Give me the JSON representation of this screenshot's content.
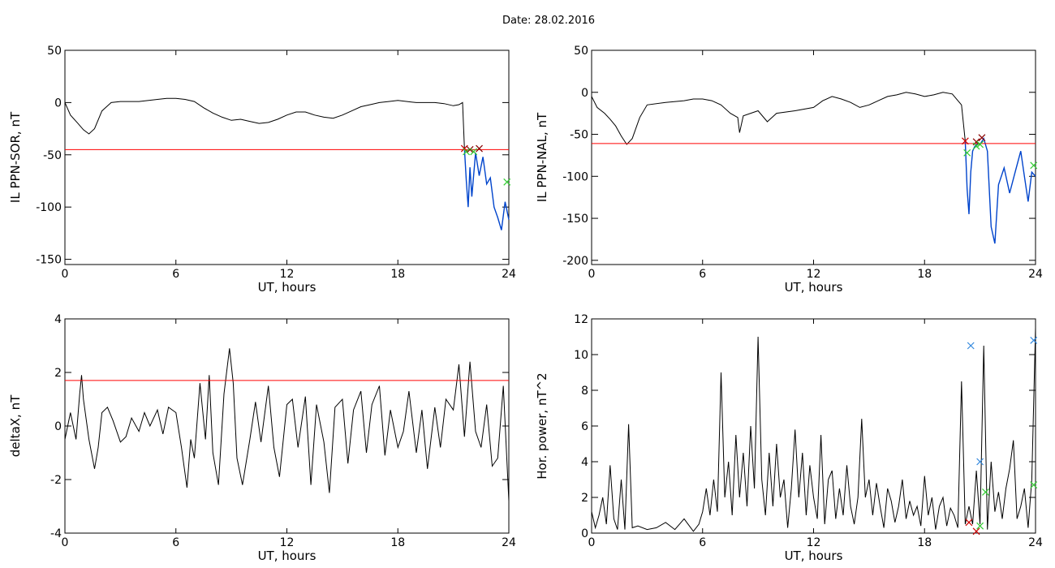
{
  "title": "Date:  28.02.2016",
  "colors": {
    "trace": "#000000",
    "threshold": "#ff0000",
    "highlight": "#0044cc",
    "marker_red": "#cc0000",
    "marker_green": "#33cc33",
    "marker_blue": "#3388dd",
    "marker_darkred": "#880000"
  },
  "chart_data": [
    {
      "id": "p1",
      "type": "line",
      "xlabel": "UT, hours",
      "ylabel": "IL PPN-SOR, nT",
      "xlim": [
        0,
        24
      ],
      "ylim": [
        -155,
        50
      ],
      "xticks": [
        0,
        6,
        12,
        18,
        24
      ],
      "yticks": [
        50,
        0,
        -50,
        -100,
        -150
      ],
      "threshold": -45,
      "series": [
        {
          "x": [
            0,
            0.3,
            0.7,
            1.0,
            1.3,
            1.6,
            2.0,
            2.5,
            3.0,
            4.0,
            5.0,
            5.5,
            6.0,
            6.5,
            7.0,
            7.5,
            8.0,
            8.5,
            9.0,
            9.5,
            10.0,
            10.5,
            11.0,
            11.5,
            12.0,
            12.5,
            13.0,
            13.5,
            14.0,
            14.5,
            15.0,
            15.5,
            16.0,
            16.5,
            17.0,
            17.5,
            18.0,
            18.5,
            19.0,
            19.5,
            20.0,
            20.5,
            21.0,
            21.3,
            21.5,
            21.6
          ],
          "y": [
            0,
            -12,
            -20,
            -26,
            -30,
            -25,
            -8,
            0,
            1,
            1,
            3,
            4,
            4,
            3,
            1,
            -5,
            -10,
            -14,
            -17,
            -16,
            -18,
            -20,
            -19,
            -16,
            -12,
            -9,
            -9,
            -12,
            -14,
            -15,
            -12,
            -8,
            -4,
            -2,
            0,
            1,
            2,
            1,
            0,
            0,
            0,
            -1,
            -3,
            -2,
            0,
            -44
          ]
        },
        {
          "x": [
            21.6,
            21.7,
            21.8,
            21.9,
            22.0,
            22.2,
            22.4,
            22.6,
            22.8,
            23.0,
            23.2,
            23.4,
            23.6,
            23.8,
            24.0
          ],
          "y": [
            -44,
            -75,
            -100,
            -62,
            -90,
            -48,
            -70,
            -52,
            -78,
            -72,
            -100,
            -110,
            -122,
            -95,
            -112
          ],
          "highlight": true
        }
      ],
      "markers": [
        {
          "x": 21.6,
          "y": -44,
          "color": "marker_red"
        },
        {
          "x": 21.9,
          "y": -45,
          "color": "marker_darkred"
        },
        {
          "x": 22.4,
          "y": -44,
          "color": "marker_darkred"
        },
        {
          "x": 21.7,
          "y": -47,
          "color": "marker_green"
        },
        {
          "x": 22.1,
          "y": -47,
          "color": "marker_green"
        },
        {
          "x": 23.9,
          "y": -76,
          "color": "marker_green"
        }
      ]
    },
    {
      "id": "p2",
      "type": "line",
      "xlabel": "UT, hours",
      "ylabel": "IL PPN-NAL, nT",
      "xlim": [
        0,
        24
      ],
      "ylim": [
        -205,
        50
      ],
      "xticks": [
        0,
        6,
        12,
        18,
        24
      ],
      "yticks": [
        50,
        0,
        -50,
        -100,
        -150,
        -200
      ],
      "threshold": -61,
      "series": [
        {
          "x": [
            0,
            0.3,
            0.7,
            1.0,
            1.3,
            1.6,
            1.9,
            2.2,
            2.6,
            3.0,
            4.0,
            5.0,
            5.5,
            6.0,
            6.5,
            7.0,
            7.5,
            7.9,
            8.0,
            8.2,
            9.0,
            9.5,
            10.0,
            11.0,
            12.0,
            12.5,
            13.0,
            13.5,
            14.0,
            14.5,
            15.0,
            15.5,
            16.0,
            16.5,
            17.0,
            17.5,
            18.0,
            18.5,
            19.0,
            19.5,
            20.0,
            20.2
          ],
          "y": [
            -5,
            -18,
            -25,
            -32,
            -40,
            -52,
            -62,
            -55,
            -30,
            -15,
            -12,
            -10,
            -8,
            -8,
            -10,
            -15,
            -25,
            -30,
            -48,
            -28,
            -22,
            -35,
            -25,
            -22,
            -18,
            -10,
            -5,
            -8,
            -12,
            -18,
            -15,
            -10,
            -5,
            -3,
            0,
            -2,
            -5,
            -3,
            0,
            -2,
            -15,
            -58
          ]
        },
        {
          "x": [
            20.2,
            20.3,
            20.4,
            20.5,
            20.6,
            20.7,
            20.9,
            21.0,
            21.2,
            21.4,
            21.6,
            21.8,
            22.0,
            22.3,
            22.6,
            22.9,
            23.2,
            23.4,
            23.6,
            23.8,
            24.0
          ],
          "y": [
            -58,
            -115,
            -145,
            -95,
            -70,
            -65,
            -60,
            -62,
            -55,
            -70,
            -160,
            -180,
            -110,
            -90,
            -120,
            -95,
            -70,
            -100,
            -130,
            -95,
            -100
          ],
          "highlight": true
        }
      ],
      "markers": [
        {
          "x": 20.2,
          "y": -58,
          "color": "marker_red"
        },
        {
          "x": 20.8,
          "y": -59,
          "color": "marker_darkred"
        },
        {
          "x": 21.1,
          "y": -54,
          "color": "marker_darkred"
        },
        {
          "x": 20.3,
          "y": -72,
          "color": "marker_green"
        },
        {
          "x": 20.8,
          "y": -64,
          "color": "marker_green"
        },
        {
          "x": 21.0,
          "y": -62,
          "color": "marker_green"
        },
        {
          "x": 23.9,
          "y": -87,
          "color": "marker_green"
        }
      ]
    },
    {
      "id": "p3",
      "type": "line",
      "xlabel": "UT, hours",
      "ylabel": "deltaX, nT",
      "xlim": [
        0,
        24
      ],
      "ylim": [
        -4,
        4
      ],
      "xticks": [
        0,
        6,
        12,
        18,
        24
      ],
      "yticks": [
        4,
        2,
        0,
        -2,
        -4
      ],
      "threshold": 1.7,
      "series": [
        {
          "x": [
            0,
            0.3,
            0.6,
            0.8,
            0.9,
            1.0,
            1.3,
            1.6,
            1.8,
            2.0,
            2.3,
            2.6,
            3.0,
            3.3,
            3.6,
            4.0,
            4.3,
            4.6,
            5.0,
            5.3,
            5.6,
            6.0,
            6.3,
            6.6,
            6.8,
            7.0,
            7.3,
            7.6,
            7.8,
            8.0,
            8.3,
            8.6,
            8.9,
            9.1,
            9.3,
            9.6,
            10.0,
            10.3,
            10.6,
            11.0,
            11.3,
            11.6,
            12.0,
            12.3,
            12.6,
            13.0,
            13.3,
            13.6,
            14.0,
            14.3,
            14.6,
            15.0,
            15.3,
            15.6,
            16.0,
            16.3,
            16.6,
            17.0,
            17.3,
            17.6,
            18.0,
            18.3,
            18.6,
            19.0,
            19.3,
            19.6,
            20.0,
            20.3,
            20.6,
            21.0,
            21.3,
            21.6,
            21.9,
            22.2,
            22.5,
            22.8,
            23.1,
            23.4,
            23.7,
            24.0
          ],
          "y": [
            -0.5,
            0.5,
            -0.5,
            1.2,
            1.9,
            1.0,
            -0.5,
            -1.6,
            -0.8,
            0.5,
            0.7,
            0.2,
            -0.6,
            -0.4,
            0.3,
            -0.2,
            0.5,
            0.0,
            0.6,
            -0.3,
            0.7,
            0.5,
            -0.8,
            -2.3,
            -0.5,
            -1.2,
            1.6,
            -0.5,
            1.9,
            -1.0,
            -2.2,
            1.2,
            2.9,
            1.6,
            -1.2,
            -2.2,
            -0.5,
            0.9,
            -0.6,
            1.5,
            -0.8,
            -1.9,
            0.8,
            1.0,
            -0.8,
            1.1,
            -2.2,
            0.8,
            -0.6,
            -2.5,
            0.7,
            1.0,
            -1.4,
            0.6,
            1.3,
            -1.0,
            0.8,
            1.5,
            -1.1,
            0.6,
            -0.8,
            -0.2,
            1.3,
            -1.0,
            0.6,
            -1.6,
            0.7,
            -0.8,
            1.0,
            0.6,
            2.3,
            -0.4,
            2.4,
            -0.2,
            -0.8,
            0.8,
            -1.5,
            -1.2,
            1.5,
            -2.8
          ]
        }
      ],
      "markers": []
    },
    {
      "id": "p4",
      "type": "line",
      "xlabel": "UT, hours",
      "ylabel": "Hor. power, nT^2",
      "xlim": [
        0,
        24
      ],
      "ylim": [
        0,
        12
      ],
      "xticks": [
        0,
        6,
        12,
        18,
        24
      ],
      "yticks": [
        12,
        10,
        8,
        6,
        4,
        2,
        0
      ],
      "threshold": null,
      "series": [
        {
          "x": [
            0,
            0.2,
            0.4,
            0.6,
            0.8,
            1.0,
            1.2,
            1.4,
            1.6,
            1.8,
            2.0,
            2.2,
            2.5,
            3.0,
            3.5,
            4.0,
            4.5,
            5.0,
            5.5,
            5.8,
            6.0,
            6.2,
            6.4,
            6.6,
            6.8,
            7.0,
            7.2,
            7.4,
            7.6,
            7.8,
            8.0,
            8.2,
            8.4,
            8.6,
            8.8,
            9.0,
            9.2,
            9.4,
            9.6,
            9.8,
            10.0,
            10.2,
            10.4,
            10.6,
            10.8,
            11.0,
            11.2,
            11.4,
            11.6,
            11.8,
            12.0,
            12.2,
            12.4,
            12.6,
            12.8,
            13.0,
            13.2,
            13.4,
            13.6,
            13.8,
            14.0,
            14.2,
            14.4,
            14.6,
            14.8,
            15.0,
            15.2,
            15.4,
            15.6,
            15.8,
            16.0,
            16.2,
            16.4,
            16.6,
            16.8,
            17.0,
            17.2,
            17.4,
            17.6,
            17.8,
            18.0,
            18.2,
            18.4,
            18.6,
            18.8,
            19.0,
            19.2,
            19.4,
            19.6,
            19.8,
            20.0,
            20.2,
            20.4,
            20.6,
            20.8,
            21.0,
            21.2,
            21.4,
            21.6,
            21.8,
            22.0,
            22.2,
            22.4,
            22.6,
            22.8,
            23.0,
            23.2,
            23.4,
            23.6,
            23.8,
            24.0
          ],
          "y": [
            1.2,
            0.3,
            1.0,
            2.0,
            0.5,
            3.8,
            0.8,
            0.2,
            3.0,
            0.2,
            6.1,
            0.3,
            0.4,
            0.2,
            0.3,
            0.6,
            0.2,
            0.8,
            0.1,
            0.5,
            1.2,
            2.5,
            1.0,
            3.0,
            1.2,
            9.0,
            2.0,
            4.0,
            1.0,
            5.5,
            2.0,
            4.5,
            1.5,
            6.0,
            2.5,
            11.0,
            3.0,
            1.0,
            4.5,
            1.5,
            5.0,
            2.0,
            3.0,
            0.3,
            2.5,
            5.8,
            2.0,
            4.5,
            1.0,
            3.8,
            2.0,
            0.8,
            5.5,
            0.5,
            3.0,
            3.5,
            0.8,
            2.5,
            1.0,
            3.8,
            1.5,
            0.5,
            2.0,
            6.4,
            2.0,
            3.0,
            1.0,
            2.8,
            1.5,
            0.3,
            2.5,
            1.8,
            0.6,
            1.5,
            3.0,
            0.8,
            1.8,
            1.0,
            1.5,
            0.4,
            3.2,
            1.0,
            2.0,
            0.2,
            1.5,
            2.0,
            0.4,
            1.4,
            1.0,
            0.3,
            8.5,
            0.5,
            1.5,
            0.5,
            3.5,
            0.5,
            10.5,
            0.2,
            4.0,
            1.2,
            2.3,
            0.8,
            2.5,
            3.6,
            5.2,
            0.8,
            1.5,
            2.5,
            0.3,
            3.0,
            11.5
          ]
        }
      ],
      "markers": [
        {
          "x": 20.5,
          "y": 10.5,
          "color": "marker_blue"
        },
        {
          "x": 23.9,
          "y": 10.8,
          "color": "marker_blue"
        },
        {
          "x": 21.0,
          "y": 4.0,
          "color": "marker_blue"
        },
        {
          "x": 20.4,
          "y": 0.6,
          "color": "marker_red"
        },
        {
          "x": 20.8,
          "y": 0.1,
          "color": "marker_red"
        },
        {
          "x": 21.3,
          "y": 2.3,
          "color": "marker_green"
        },
        {
          "x": 21.0,
          "y": 0.4,
          "color": "marker_green"
        },
        {
          "x": 23.9,
          "y": 2.7,
          "color": "marker_green"
        }
      ]
    }
  ]
}
